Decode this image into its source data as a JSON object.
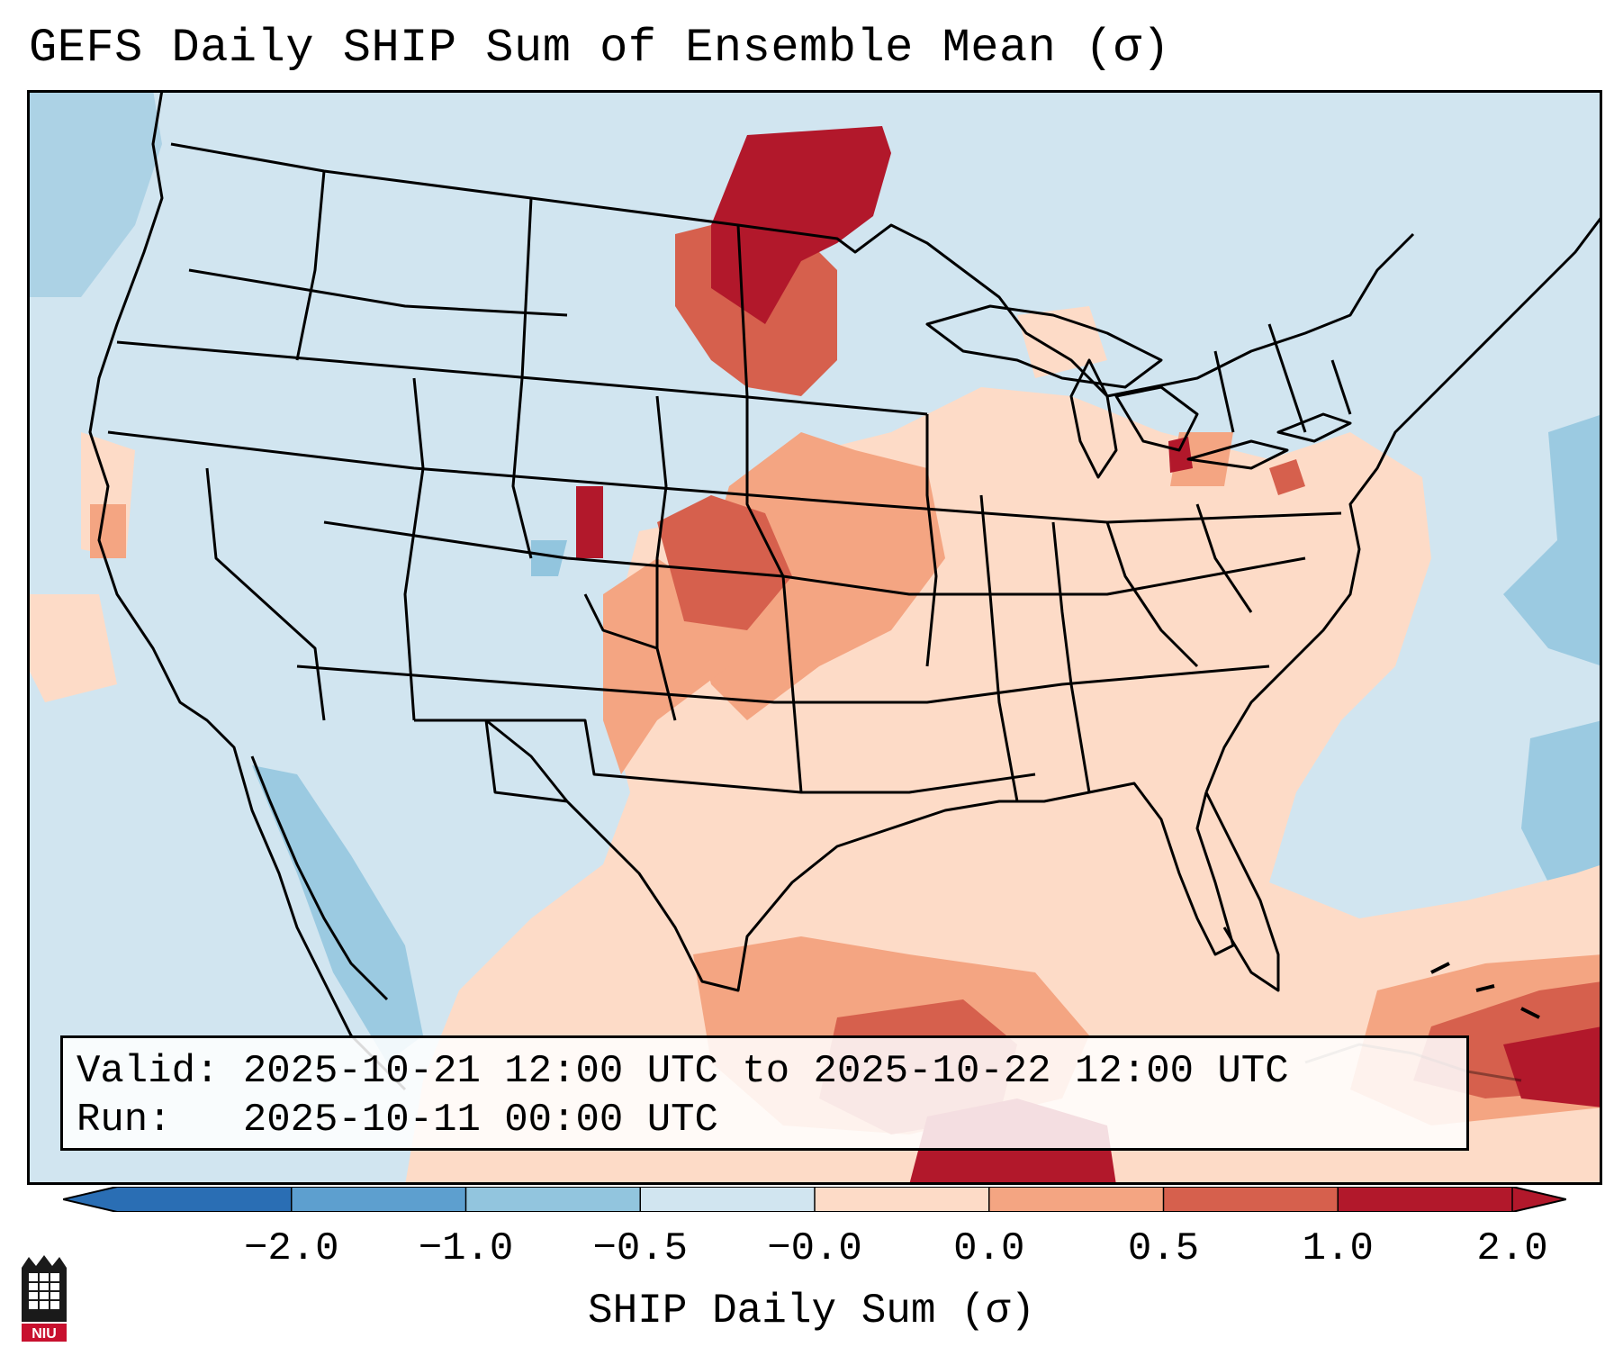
{
  "title": "GEFS Daily SHIP Sum of Ensemble Mean (σ)",
  "info": {
    "valid_line": "Valid: 2025-10-21 12:00 UTC to 2025-10-22 12:00 UTC",
    "run_line": "Run:   2025-10-11 00:00 UTC"
  },
  "colorbar": {
    "label": "SHIP Daily Sum (σ)",
    "ticks": [
      "−2.0",
      "−1.0",
      "−0.5",
      "−0.0",
      "0.0",
      "0.5",
      "1.0",
      "2.0"
    ],
    "colors": [
      "#2a6eb4",
      "#5d9fcf",
      "#92c5de",
      "#d1e5f0",
      "#fddbc7",
      "#f4a582",
      "#d6604d",
      "#b2182b"
    ],
    "extend": "both"
  },
  "map": {
    "background_color": "#d1e5f0",
    "region": "Contiguous United States"
  },
  "logo": {
    "text": "NIU"
  }
}
